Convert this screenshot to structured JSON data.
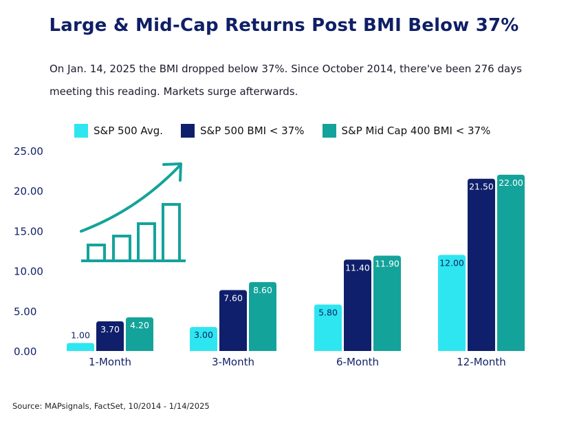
{
  "header": {
    "title": "Large & Mid-Cap Returns Post BMI Below 37%",
    "subtitle_line1": "On Jan. 14, 2025 the BMI dropped below 37%. Since October 2014, there've been 276 days",
    "subtitle_line2": "meeting this reading. Markets surge afterwards."
  },
  "footer": {
    "source": "Source: MAPsignals, FactSet, 10/2014 - 1/14/2025"
  },
  "chart_data": {
    "type": "bar",
    "title": "Large & Mid-Cap Returns Post BMI Below 37%",
    "xlabel": "",
    "ylabel": "",
    "categories": [
      "1-Month",
      "3-Month",
      "6-Month",
      "12-Month"
    ],
    "ylim": [
      0,
      25
    ],
    "yticks": [
      "0.00",
      "5.00",
      "10.00",
      "15.00",
      "20.00",
      "25.00"
    ],
    "grid": false,
    "legend_position": "top",
    "series": [
      {
        "name": "S&P 500 Avg.",
        "color": "#2ee6f0",
        "values": [
          1.0,
          3.0,
          5.8,
          12.0
        ],
        "labels": [
          "1.00",
          "3.00",
          "5.80",
          "12.00"
        ]
      },
      {
        "name": "S&P 500 BMI < 37%",
        "color": "#0f1f6b",
        "values": [
          3.7,
          7.6,
          11.4,
          21.5
        ],
        "labels": [
          "3.70",
          "7.60",
          "11.40",
          "21.50"
        ]
      },
      {
        "name": "S&P Mid Cap 400 BMI < 37%",
        "color": "#14a39a",
        "values": [
          4.2,
          8.6,
          11.9,
          22.0
        ],
        "labels": [
          "4.20",
          "8.60",
          "11.90",
          "22.00"
        ]
      }
    ]
  },
  "decoration": {
    "icon": "growth-chart-icon",
    "icon_color": "#14a39a"
  }
}
